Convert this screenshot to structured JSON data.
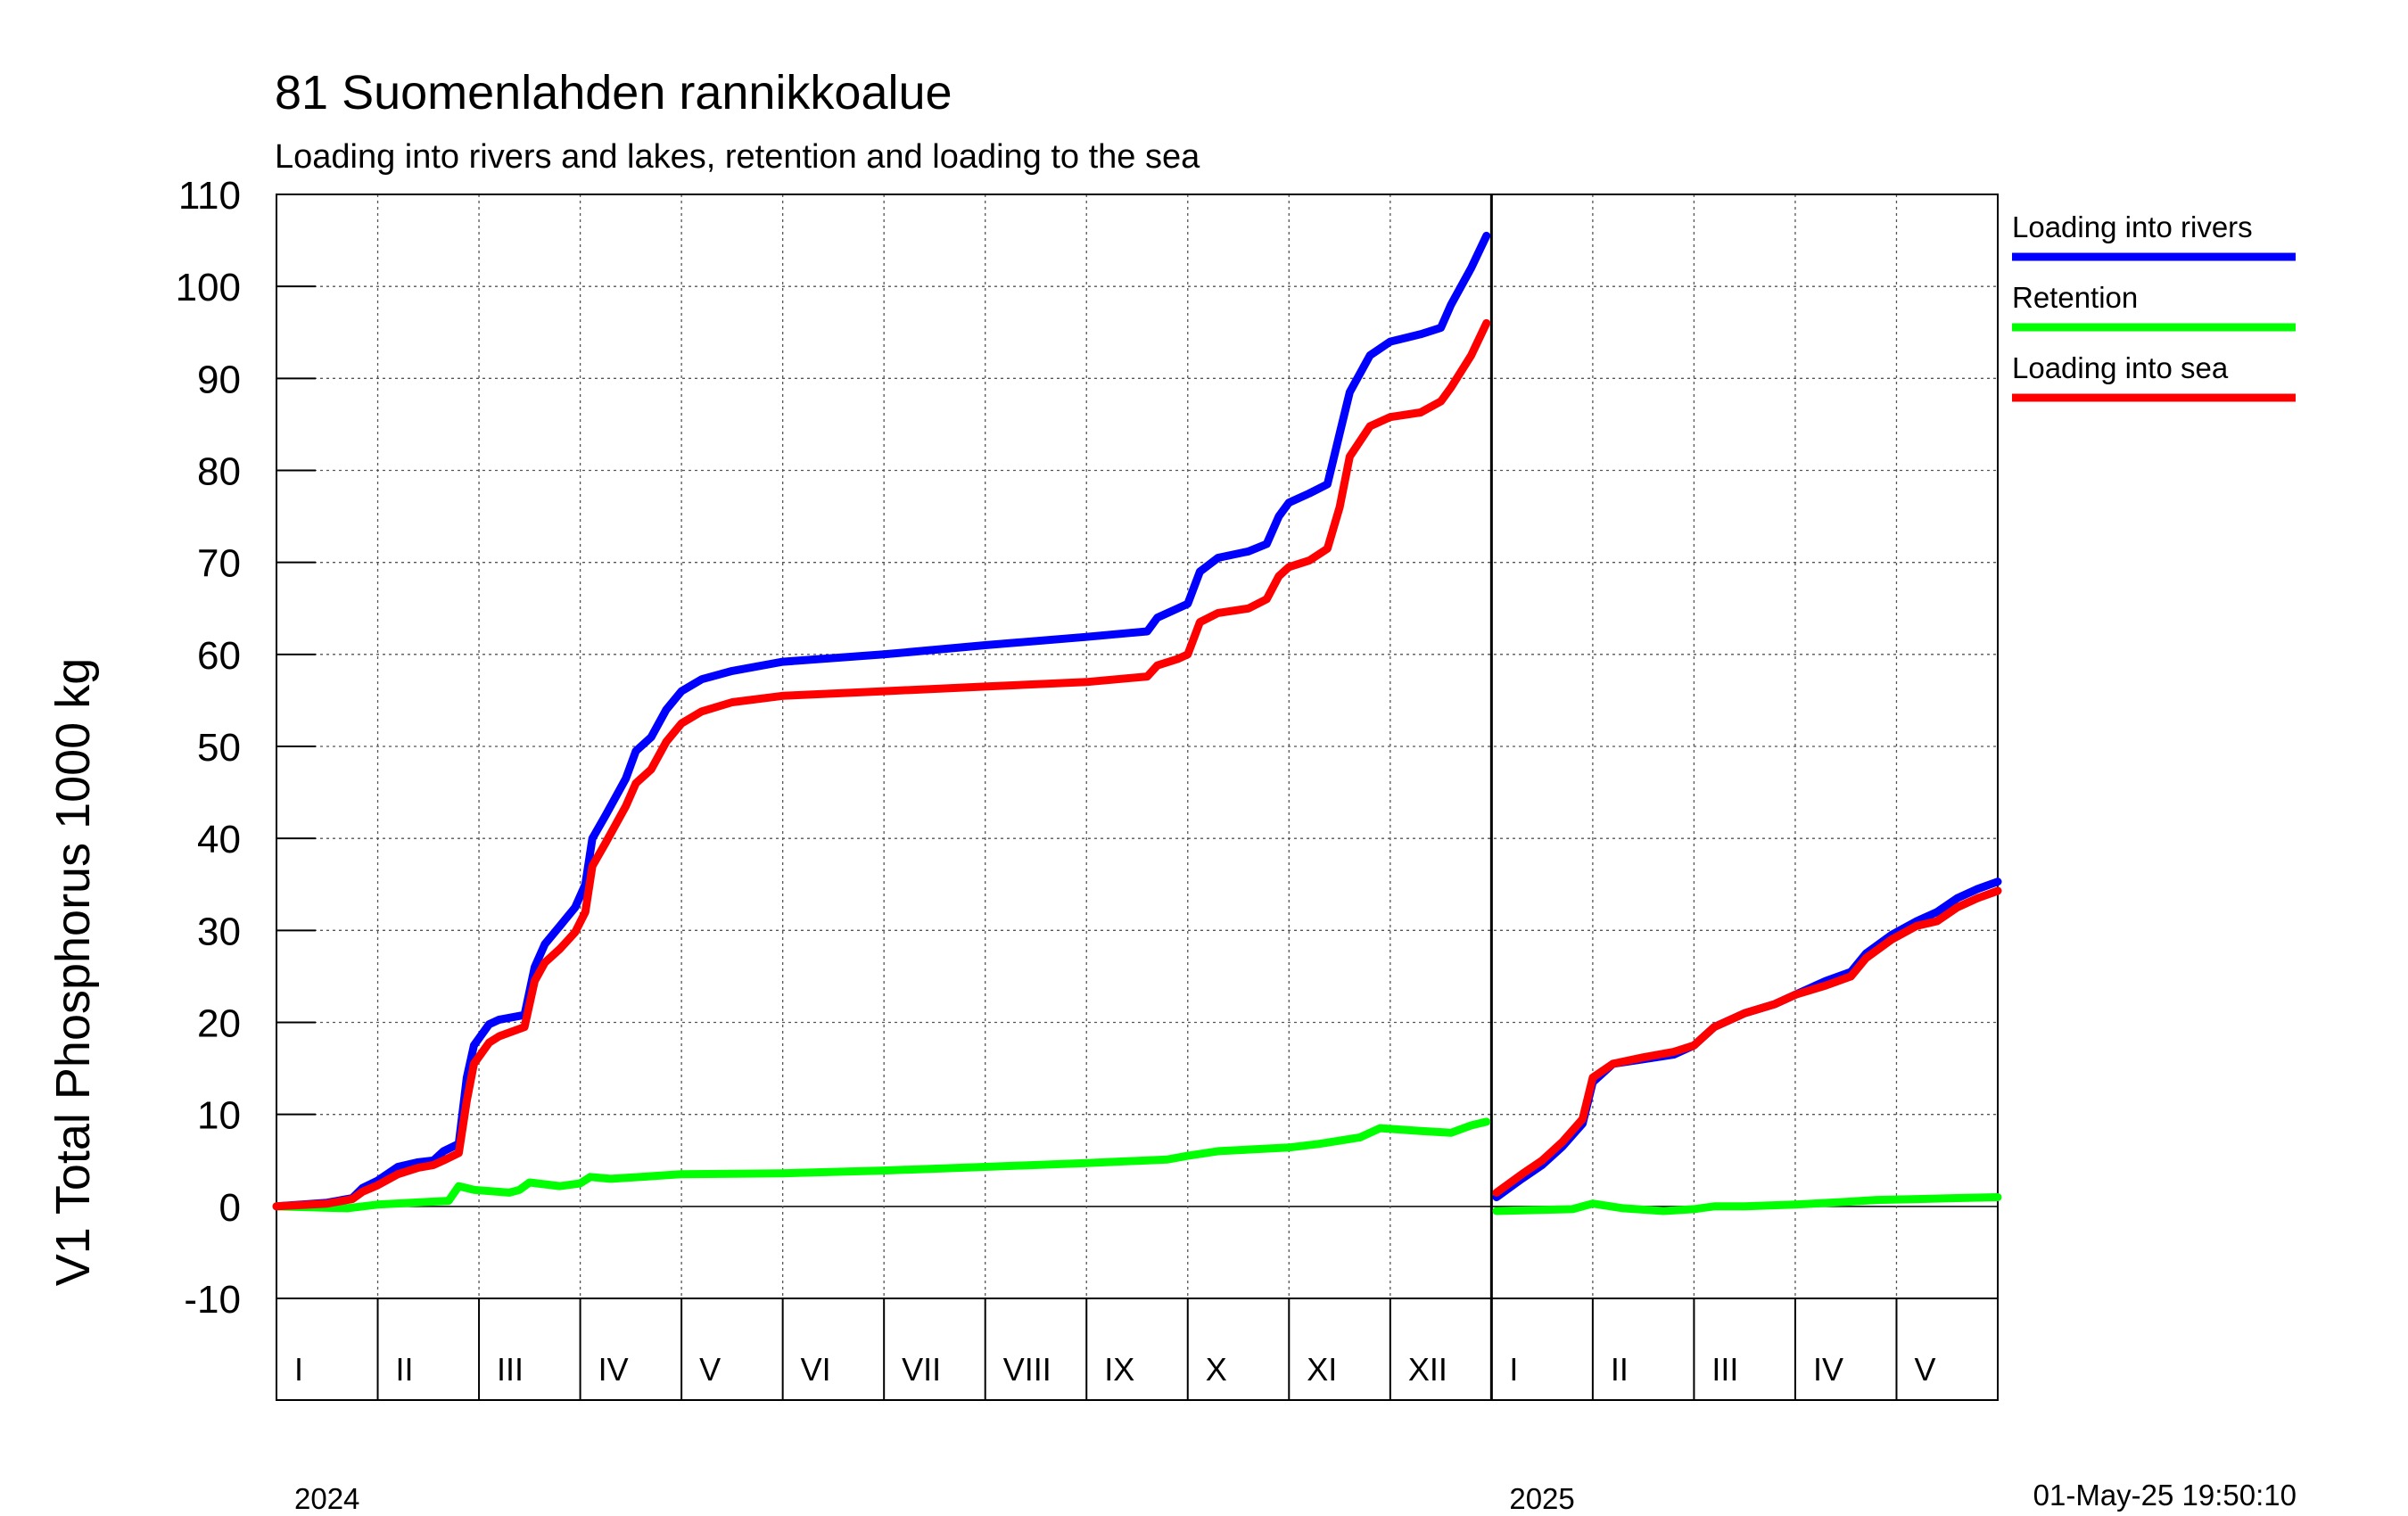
{
  "chart_data": {
    "type": "line",
    "title": "81 Suomenlahden rannikkoalue",
    "subtitle": "Loading into rivers and lakes, retention and loading to the sea",
    "ylabel": "V1 Total Phosphorus 1000 kg",
    "ylim": [
      -10,
      110
    ],
    "yticks": [
      -10,
      0,
      10,
      20,
      30,
      40,
      50,
      60,
      70,
      80,
      90,
      100,
      110
    ],
    "grid": true,
    "legend_position": "right",
    "timestamp": "01-May-25 19:50:10",
    "years": [
      {
        "label": "2024",
        "start_month": 0
      },
      {
        "label": "2025",
        "start_month": 12
      }
    ],
    "month_labels": [
      "I",
      "II",
      "III",
      "IV",
      "V",
      "VI",
      "VII",
      "VIII",
      "IX",
      "X",
      "XI",
      "XII",
      "I",
      "II",
      "III",
      "IV",
      "V"
    ],
    "x_range_months": [
      0,
      17
    ],
    "gap_after_month": 12,
    "series": [
      {
        "name": "Loading into rivers",
        "color": "#0000ff",
        "segments": [
          [
            [
              0,
              0
            ],
            [
              0.5,
              0.4
            ],
            [
              0.75,
              0.9
            ],
            [
              0.85,
              2.0
            ],
            [
              1.0,
              2.8
            ],
            [
              1.2,
              4.3
            ],
            [
              1.4,
              4.8
            ],
            [
              1.55,
              5.0
            ],
            [
              1.65,
              6.0
            ],
            [
              1.8,
              6.8
            ],
            [
              1.88,
              14.0
            ],
            [
              1.95,
              17.5
            ],
            [
              2.1,
              19.8
            ],
            [
              2.2,
              20.3
            ],
            [
              2.45,
              20.8
            ],
            [
              2.55,
              26.0
            ],
            [
              2.65,
              28.5
            ],
            [
              2.8,
              30.5
            ],
            [
              2.95,
              32.5
            ],
            [
              3.05,
              35.0
            ],
            [
              3.12,
              40.0
            ],
            [
              3.25,
              42.5
            ],
            [
              3.45,
              46.5
            ],
            [
              3.55,
              49.5
            ],
            [
              3.7,
              51.0
            ],
            [
              3.85,
              54.0
            ],
            [
              4.0,
              56.0
            ],
            [
              4.2,
              57.3
            ],
            [
              4.5,
              58.2
            ],
            [
              5.0,
              59.2
            ],
            [
              6.0,
              60.0
            ],
            [
              7.0,
              61.0
            ],
            [
              8.0,
              61.9
            ],
            [
              8.6,
              62.5
            ],
            [
              8.7,
              64.0
            ],
            [
              8.9,
              65.0
            ],
            [
              9.0,
              65.5
            ],
            [
              9.12,
              69.0
            ],
            [
              9.3,
              70.5
            ],
            [
              9.6,
              71.2
            ],
            [
              9.78,
              72.0
            ],
            [
              9.9,
              75.0
            ],
            [
              10.0,
              76.5
            ],
            [
              10.2,
              77.5
            ],
            [
              10.38,
              78.5
            ],
            [
              10.5,
              84.0
            ],
            [
              10.6,
              88.5
            ],
            [
              10.8,
              92.5
            ],
            [
              11.0,
              94.0
            ],
            [
              11.3,
              94.8
            ],
            [
              11.5,
              95.5
            ],
            [
              11.6,
              98.0
            ],
            [
              11.8,
              102.0
            ],
            [
              11.95,
              105.5
            ]
          ],
          [
            [
              12.05,
              1.0
            ],
            [
              12.3,
              3.0
            ],
            [
              12.5,
              4.5
            ],
            [
              12.7,
              6.5
            ],
            [
              12.9,
              9.0
            ],
            [
              13.0,
              13.5
            ],
            [
              13.2,
              15.5
            ],
            [
              13.5,
              16.0
            ],
            [
              13.8,
              16.5
            ],
            [
              14.0,
              17.5
            ],
            [
              14.2,
              19.5
            ],
            [
              14.5,
              21.0
            ],
            [
              14.8,
              22.0
            ],
            [
              15.0,
              23.0
            ],
            [
              15.3,
              24.5
            ],
            [
              15.55,
              25.5
            ],
            [
              15.7,
              27.5
            ],
            [
              15.95,
              29.5
            ],
            [
              16.2,
              31.0
            ],
            [
              16.4,
              32.0
            ],
            [
              16.6,
              33.5
            ],
            [
              16.8,
              34.5
            ],
            [
              17.0,
              35.3
            ]
          ]
        ]
      },
      {
        "name": "Retention",
        "color": "#00ff00",
        "segments": [
          [
            [
              0,
              0
            ],
            [
              0.7,
              -0.2
            ],
            [
              1.0,
              0.2
            ],
            [
              1.5,
              0.5
            ],
            [
              1.7,
              0.6
            ],
            [
              1.8,
              2.2
            ],
            [
              1.95,
              1.8
            ],
            [
              2.3,
              1.5
            ],
            [
              2.4,
              1.8
            ],
            [
              2.5,
              2.6
            ],
            [
              2.8,
              2.2
            ],
            [
              3.0,
              2.5
            ],
            [
              3.1,
              3.2
            ],
            [
              3.3,
              3.0
            ],
            [
              3.6,
              3.2
            ],
            [
              4.0,
              3.5
            ],
            [
              5.0,
              3.6
            ],
            [
              6.0,
              3.9
            ],
            [
              7.0,
              4.3
            ],
            [
              8.0,
              4.7
            ],
            [
              8.8,
              5.1
            ],
            [
              9.0,
              5.5
            ],
            [
              9.3,
              6.0
            ],
            [
              10.0,
              6.4
            ],
            [
              10.3,
              6.8
            ],
            [
              10.7,
              7.5
            ],
            [
              10.9,
              8.5
            ],
            [
              11.3,
              8.2
            ],
            [
              11.6,
              8.0
            ],
            [
              11.8,
              8.8
            ],
            [
              11.95,
              9.2
            ]
          ],
          [
            [
              12.05,
              -0.5
            ],
            [
              12.4,
              -0.4
            ],
            [
              12.8,
              -0.3
            ],
            [
              13.0,
              0.3
            ],
            [
              13.3,
              -0.2
            ],
            [
              13.7,
              -0.5
            ],
            [
              14.0,
              -0.3
            ],
            [
              14.2,
              0.0
            ],
            [
              14.5,
              0.0
            ],
            [
              15.0,
              0.2
            ],
            [
              15.5,
              0.5
            ],
            [
              15.8,
              0.7
            ],
            [
              16.2,
              0.8
            ],
            [
              16.6,
              0.9
            ],
            [
              17.0,
              1.0
            ]
          ]
        ]
      },
      {
        "name": "Loading into sea",
        "color": "#ff0000",
        "segments": [
          [
            [
              0,
              0
            ],
            [
              0.5,
              0.3
            ],
            [
              0.75,
              0.8
            ],
            [
              0.85,
              1.6
            ],
            [
              1.0,
              2.3
            ],
            [
              1.2,
              3.5
            ],
            [
              1.4,
              4.2
            ],
            [
              1.55,
              4.5
            ],
            [
              1.65,
              5.0
            ],
            [
              1.8,
              5.8
            ],
            [
              1.88,
              11.5
            ],
            [
              1.95,
              15.5
            ],
            [
              2.1,
              17.8
            ],
            [
              2.2,
              18.5
            ],
            [
              2.45,
              19.5
            ],
            [
              2.55,
              24.5
            ],
            [
              2.65,
              26.5
            ],
            [
              2.8,
              28.0
            ],
            [
              2.95,
              29.8
            ],
            [
              3.05,
              32.0
            ],
            [
              3.12,
              37.0
            ],
            [
              3.25,
              39.5
            ],
            [
              3.45,
              43.5
            ],
            [
              3.55,
              46.0
            ],
            [
              3.7,
              47.5
            ],
            [
              3.85,
              50.5
            ],
            [
              4.0,
              52.5
            ],
            [
              4.2,
              53.8
            ],
            [
              4.5,
              54.8
            ],
            [
              5.0,
              55.5
            ],
            [
              6.0,
              56.0
            ],
            [
              7.0,
              56.5
            ],
            [
              8.0,
              57.0
            ],
            [
              8.6,
              57.6
            ],
            [
              8.7,
              58.8
            ],
            [
              8.9,
              59.5
            ],
            [
              9.0,
              60.0
            ],
            [
              9.12,
              63.5
            ],
            [
              9.3,
              64.5
            ],
            [
              9.6,
              65.0
            ],
            [
              9.78,
              66.0
            ],
            [
              9.9,
              68.5
            ],
            [
              10.0,
              69.5
            ],
            [
              10.2,
              70.2
            ],
            [
              10.38,
              71.5
            ],
            [
              10.5,
              76.0
            ],
            [
              10.6,
              81.5
            ],
            [
              10.8,
              84.8
            ],
            [
              11.0,
              85.8
            ],
            [
              11.3,
              86.3
            ],
            [
              11.5,
              87.5
            ],
            [
              11.6,
              89.0
            ],
            [
              11.8,
              92.5
            ],
            [
              11.95,
              96.0
            ]
          ],
          [
            [
              12.05,
              1.5
            ],
            [
              12.3,
              3.5
            ],
            [
              12.5,
              5.0
            ],
            [
              12.7,
              7.0
            ],
            [
              12.9,
              9.5
            ],
            [
              13.0,
              14.0
            ],
            [
              13.2,
              15.5
            ],
            [
              13.5,
              16.2
            ],
            [
              13.8,
              16.8
            ],
            [
              14.0,
              17.5
            ],
            [
              14.2,
              19.5
            ],
            [
              14.5,
              21.0
            ],
            [
              14.8,
              22.0
            ],
            [
              15.0,
              23.0
            ],
            [
              15.3,
              24.0
            ],
            [
              15.55,
              25.0
            ],
            [
              15.7,
              27.0
            ],
            [
              15.95,
              29.0
            ],
            [
              16.2,
              30.5
            ],
            [
              16.4,
              31.0
            ],
            [
              16.6,
              32.5
            ],
            [
              16.8,
              33.5
            ],
            [
              17.0,
              34.3
            ]
          ]
        ]
      }
    ]
  }
}
